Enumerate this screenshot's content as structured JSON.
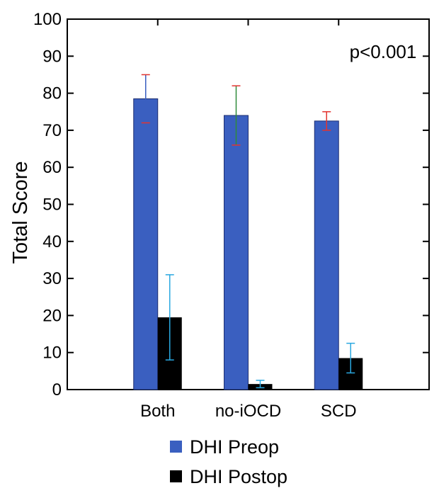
{
  "chart_data": {
    "type": "bar",
    "title": "",
    "xlabel": "",
    "ylabel": "Total Score",
    "ylim": [
      0,
      100
    ],
    "yticks": [
      0,
      10,
      20,
      30,
      40,
      50,
      60,
      70,
      80,
      90,
      100
    ],
    "categories": [
      "Both",
      "no-iOCD",
      "SCD"
    ],
    "annotation": "p<0.001",
    "legend_position": "bottom",
    "grid": false,
    "series": [
      {
        "name": "DHI Preop",
        "color": "#3a5fc0",
        "values": [
          78.5,
          74,
          72.5
        ],
        "error_upper": [
          85,
          82,
          75
        ],
        "error_lower": [
          72,
          66,
          70
        ],
        "error_colors": [
          "#3a5fc0",
          "#2e8b3a",
          "#e3342f"
        ],
        "error_cap_colors": [
          "#e3342f",
          "#e3342f",
          "#e3342f"
        ]
      },
      {
        "name": "DHI Postop",
        "color": "#000000",
        "values": [
          19.5,
          1.5,
          8.5
        ],
        "error_upper": [
          31,
          2.5,
          12.5
        ],
        "error_lower": [
          8,
          0.5,
          4.5
        ],
        "error_colors": [
          "#2aa8e0",
          "#2aa8e0",
          "#2aa8e0"
        ],
        "error_cap_colors": [
          "#2aa8e0",
          "#2aa8e0",
          "#2aa8e0"
        ]
      }
    ]
  }
}
